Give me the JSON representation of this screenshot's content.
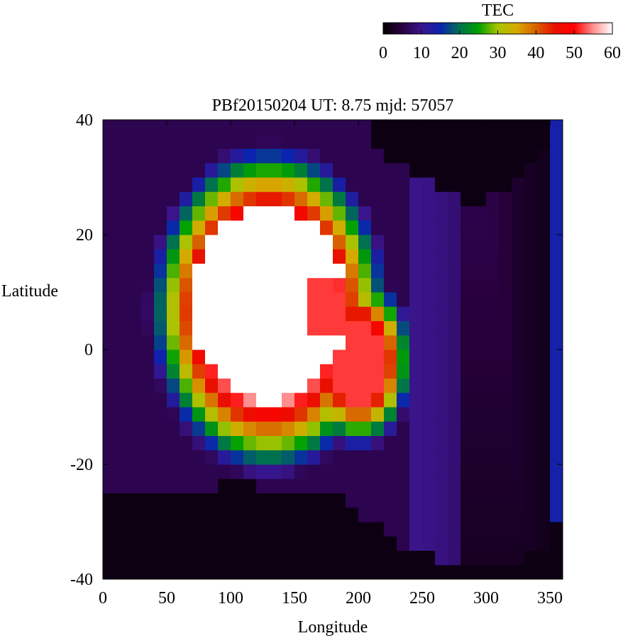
{
  "chart_data": {
    "type": "heatmap",
    "title": "PBf20150204  UT: 8.75  mjd: 57057",
    "xlabel": "Longitude",
    "ylabel": "Latitude",
    "xlim": [
      0,
      360
    ],
    "ylim": [
      -40,
      40
    ],
    "x_ticks": [
      0,
      50,
      100,
      150,
      200,
      250,
      300,
      350
    ],
    "y_ticks": [
      -40,
      -20,
      0,
      20,
      40
    ],
    "grid": false,
    "cell_size": {
      "lon": 10,
      "lat": 2.5
    },
    "colorbar": {
      "label": "TEC",
      "range": [
        0,
        60
      ],
      "ticks": [
        0,
        10,
        20,
        30,
        40,
        50,
        60
      ],
      "placement": "top-right",
      "colormap": [
        [
          0,
          "#000000"
        ],
        [
          5,
          "#2a0040"
        ],
        [
          10,
          "#3a148a"
        ],
        [
          15,
          "#0a24b0"
        ],
        [
          20,
          "#007050"
        ],
        [
          25,
          "#00a000"
        ],
        [
          30,
          "#a8c400"
        ],
        [
          35,
          "#d8a800"
        ],
        [
          40,
          "#d86000"
        ],
        [
          45,
          "#e81000"
        ],
        [
          50,
          "#ff0000"
        ],
        [
          55,
          "#ff9090"
        ],
        [
          60,
          "#ffffff"
        ]
      ]
    },
    "features": {
      "peak": {
        "lon_range": [
          70,
          190
        ],
        "lat_range": [
          -8,
          24
        ],
        "value": 60
      },
      "notch": {
        "lon_range": [
          165,
          200
        ],
        "lat_range": [
          3,
          12
        ]
      },
      "southern_dark_boundary_lat": [
        -26,
        -25,
        -25,
        -25,
        -25,
        -25,
        -25,
        -24,
        -24,
        -23,
        -23,
        -23,
        -24,
        -24,
        -25,
        -25,
        -25,
        -26,
        -26,
        -28,
        -29,
        -31,
        -32,
        -34,
        -35,
        -36,
        -37,
        -37,
        -37,
        -38,
        -38,
        -38,
        -37,
        -36,
        -34,
        -30
      ],
      "northern_dark_boundary_lat": [
        46,
        46,
        46,
        46,
        46,
        46,
        46,
        46,
        46,
        46,
        46,
        46,
        46,
        46,
        46,
        46,
        46,
        46,
        46,
        46,
        40,
        36,
        33,
        32,
        31,
        30,
        28,
        27,
        26,
        26,
        27,
        28,
        30,
        33,
        36,
        39
      ]
    }
  }
}
